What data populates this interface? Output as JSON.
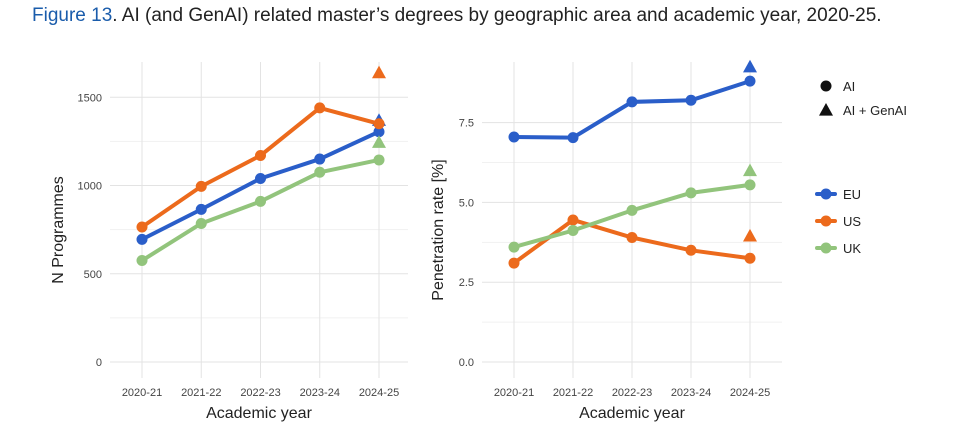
{
  "figure": {
    "label": "Figure 13",
    "text": ". AI (and GenAI) related master’s degrees by geographic area and academic year, 2020-25."
  },
  "colors": {
    "EU": "#2a5ec9",
    "US": "#ec6a1c",
    "UK": "#92c47c",
    "caption_label": "#1a5cab"
  },
  "chart_data": [
    {
      "type": "line",
      "categories": [
        "2020-21",
        "2021-22",
        "2022-23",
        "2023-24",
        "2024-25"
      ],
      "xlabel": "Academic year",
      "ylabel": "N Programmes",
      "ylim": [
        0,
        1700
      ],
      "yticks": [
        0,
        500,
        1000,
        1500
      ],
      "ytick_labels": [
        "0",
        "500",
        "1000",
        "1500"
      ],
      "grid": true,
      "series": [
        {
          "name": "EU",
          "values": [
            695,
            865,
            1040,
            1150,
            1305
          ],
          "genai": 1370
        },
        {
          "name": "US",
          "values": [
            765,
            995,
            1170,
            1440,
            1350
          ],
          "genai": 1640
        },
        {
          "name": "UK",
          "values": [
            575,
            785,
            910,
            1075,
            1145
          ],
          "genai": 1245
        }
      ]
    },
    {
      "type": "line",
      "categories": [
        "2020-21",
        "2021-22",
        "2022-23",
        "2023-24",
        "2024-25"
      ],
      "xlabel": "Academic year",
      "ylabel": "Penetration rate [%]",
      "ylim": [
        0,
        9.4
      ],
      "yticks": [
        0,
        2.5,
        5.0,
        7.5
      ],
      "ytick_labels": [
        "0.0",
        "2.5",
        "5.0",
        "7.5"
      ],
      "grid": true,
      "series": [
        {
          "name": "EU",
          "values": [
            7.05,
            7.03,
            8.15,
            8.2,
            8.8
          ],
          "genai": 9.25
        },
        {
          "name": "US",
          "values": [
            3.1,
            4.45,
            3.9,
            3.5,
            3.25
          ],
          "genai": 3.95
        },
        {
          "name": "UK",
          "values": [
            3.6,
            4.12,
            4.75,
            5.3,
            5.55
          ],
          "genai": 6.0
        }
      ]
    }
  ],
  "legend": {
    "shape_items": [
      {
        "shape": "circle",
        "label": "AI"
      },
      {
        "shape": "triangle",
        "label": "AI + GenAI"
      }
    ],
    "color_items": [
      {
        "key": "EU",
        "label": "EU"
      },
      {
        "key": "US",
        "label": "US"
      },
      {
        "key": "UK",
        "label": "UK"
      }
    ]
  }
}
